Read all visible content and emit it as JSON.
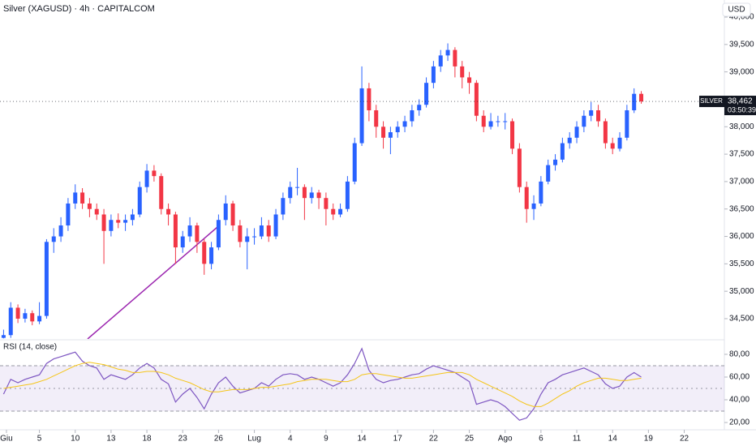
{
  "chart_data": [
    {
      "type": "candlestick",
      "title": "Silver (XAGUSD) · 4h · CAPITALCOM",
      "currency": "USD",
      "symbol_label": "SILVER",
      "last_price": {
        "value": 38462,
        "label": "38,462"
      },
      "countdown": "03:50:39",
      "up_color": "#2962ff",
      "down_color": "#f23645",
      "xlim": [
        -0.5,
        100.6
      ],
      "xticks": [
        {
          "value": 0.4,
          "label": "Giu"
        },
        {
          "value": 5,
          "label": "5"
        },
        {
          "value": 10,
          "label": "10"
        },
        {
          "value": 15,
          "label": "13"
        },
        {
          "value": 20,
          "label": "18"
        },
        {
          "value": 25,
          "label": "23"
        },
        {
          "value": 30,
          "label": "26"
        },
        {
          "value": 35,
          "label": "Lug"
        },
        {
          "value": 40,
          "label": "4"
        },
        {
          "value": 45,
          "label": "9"
        },
        {
          "value": 50,
          "label": "14"
        },
        {
          "value": 55,
          "label": "17"
        },
        {
          "value": 60,
          "label": "22"
        },
        {
          "value": 65,
          "label": "25"
        },
        {
          "value": 70,
          "label": "Ago"
        },
        {
          "value": 75,
          "label": "6"
        },
        {
          "value": 80,
          "label": "11"
        },
        {
          "value": 85,
          "label": "14"
        },
        {
          "value": 90,
          "label": "19"
        },
        {
          "value": 95,
          "label": "22"
        }
      ],
      "ylim": [
        34130,
        40311
      ],
      "yticks": [
        {
          "value": 34500,
          "label": "34,500"
        },
        {
          "value": 35000,
          "label": "35,000"
        },
        {
          "value": 35500,
          "label": "35,500"
        },
        {
          "value": 36000,
          "label": "36,000"
        },
        {
          "value": 36500,
          "label": "36,500"
        },
        {
          "value": 37000,
          "label": "37,000"
        },
        {
          "value": 37500,
          "label": "37,500"
        },
        {
          "value": 38000,
          "label": "38,000"
        },
        {
          "value": 38500,
          "label": "38,500"
        },
        {
          "value": 39000,
          "label": "39,000"
        },
        {
          "value": 39500,
          "label": "39,500"
        },
        {
          "value": 40000,
          "label": "40,000"
        }
      ],
      "ohlc": [
        [
          34150,
          34300,
          34140,
          34200
        ],
        [
          34200,
          34800,
          34150,
          34700
        ],
        [
          34700,
          34760,
          34420,
          34500
        ],
        [
          34500,
          34680,
          34430,
          34600
        ],
        [
          34600,
          34650,
          34380,
          34450
        ],
        [
          34450,
          34800,
          34400,
          34550
        ],
        [
          34550,
          35950,
          34500,
          35900
        ],
        [
          35900,
          36150,
          35700,
          36000
        ],
        [
          36000,
          36350,
          35900,
          36200
        ],
        [
          36200,
          36700,
          36100,
          36600
        ],
        [
          36600,
          36950,
          36500,
          36800
        ],
        [
          36800,
          36880,
          36500,
          36600
        ],
        [
          36600,
          36700,
          36350,
          36500
        ],
        [
          36500,
          36600,
          36300,
          36400
        ],
        [
          36400,
          36500,
          35500,
          36100
        ],
        [
          36100,
          36400,
          36000,
          36300
        ],
        [
          36300,
          36420,
          36150,
          36250
        ],
        [
          36250,
          36400,
          36100,
          36300
        ],
        [
          36300,
          36500,
          36200,
          36400
        ],
        [
          36400,
          37000,
          36350,
          36900
        ],
        [
          36900,
          37320,
          36800,
          37200
        ],
        [
          37200,
          37300,
          37000,
          37100
        ],
        [
          37100,
          37150,
          36400,
          36500
        ],
        [
          36500,
          36600,
          36200,
          36400
        ],
        [
          36400,
          36450,
          35500,
          35800
        ],
        [
          35800,
          36100,
          35700,
          36000
        ],
        [
          36000,
          36350,
          35900,
          36200
        ],
        [
          36200,
          36250,
          35700,
          35900
        ],
        [
          35900,
          35950,
          35300,
          35500
        ],
        [
          35500,
          35900,
          35400,
          35800
        ],
        [
          35800,
          36400,
          35750,
          36300
        ],
        [
          36300,
          36750,
          36200,
          36600
        ],
        [
          36600,
          36650,
          36100,
          36200
        ],
        [
          36200,
          36300,
          35800,
          35900
        ],
        [
          35900,
          36150,
          35400,
          36000
        ],
        [
          36000,
          36150,
          35850,
          36000
        ],
        [
          36000,
          36350,
          35950,
          36200
        ],
        [
          36200,
          36300,
          35900,
          36000
        ],
        [
          36000,
          36500,
          35950,
          36400
        ],
        [
          36400,
          36800,
          36300,
          36700
        ],
        [
          36700,
          37000,
          36600,
          36900
        ],
        [
          36900,
          37250,
          36750,
          36900
        ],
        [
          36900,
          36950,
          36300,
          36700
        ],
        [
          36700,
          36900,
          36600,
          36800
        ],
        [
          36800,
          36850,
          36500,
          36700
        ],
        [
          36700,
          36800,
          36200,
          36500
        ],
        [
          36500,
          36600,
          36300,
          36400
        ],
        [
          36400,
          36600,
          36350,
          36500
        ],
        [
          36500,
          37100,
          36450,
          37000
        ],
        [
          37000,
          37800,
          36950,
          37700
        ],
        [
          37700,
          39100,
          37650,
          38700
        ],
        [
          38700,
          38800,
          38100,
          38300
        ],
        [
          38300,
          38400,
          37800,
          38000
        ],
        [
          38000,
          38100,
          37600,
          37800
        ],
        [
          37800,
          38000,
          37500,
          37900
        ],
        [
          37900,
          38100,
          37800,
          38000
        ],
        [
          38000,
          38200,
          37900,
          38100
        ],
        [
          38100,
          38400,
          38000,
          38300
        ],
        [
          38300,
          38500,
          38200,
          38400
        ],
        [
          38400,
          38900,
          38350,
          38800
        ],
        [
          38800,
          39200,
          38700,
          39100
        ],
        [
          39100,
          39400,
          39000,
          39300
        ],
        [
          39300,
          39520,
          39200,
          39400
        ],
        [
          39400,
          39450,
          38900,
          39100
        ],
        [
          39100,
          39200,
          38700,
          38900
        ],
        [
          38900,
          39000,
          38600,
          38800
        ],
        [
          38800,
          38850,
          38100,
          38200
        ],
        [
          38200,
          38300,
          37900,
          38000
        ],
        [
          38000,
          38250,
          37950,
          38100
        ],
        [
          38100,
          38200,
          38000,
          38100
        ],
        [
          38100,
          38250,
          37950,
          38100
        ],
        [
          38100,
          38150,
          37500,
          37600
        ],
        [
          37600,
          37700,
          36800,
          36900
        ],
        [
          36900,
          37000,
          36250,
          36500
        ],
        [
          36500,
          36750,
          36300,
          36600
        ],
        [
          36600,
          37100,
          36550,
          37000
        ],
        [
          37000,
          37400,
          36950,
          37300
        ],
        [
          37300,
          37500,
          37200,
          37400
        ],
        [
          37400,
          37800,
          37350,
          37700
        ],
        [
          37700,
          37900,
          37600,
          37800
        ],
        [
          37800,
          38100,
          37700,
          38000
        ],
        [
          38000,
          38300,
          37900,
          38200
        ],
        [
          38200,
          38450,
          38100,
          38300
        ],
        [
          38300,
          38400,
          38000,
          38100
        ],
        [
          38100,
          38150,
          37600,
          37700
        ],
        [
          37700,
          37800,
          37500,
          37600
        ],
        [
          37600,
          37900,
          37550,
          37800
        ],
        [
          37800,
          38400,
          37750,
          38300
        ],
        [
          38300,
          38700,
          38250,
          38600
        ],
        [
          38600,
          38650,
          38420,
          38462
        ]
      ]
    },
    {
      "type": "line",
      "title": "RSI (14, close)",
      "xlim": [
        -0.5,
        100.6
      ],
      "ylim": [
        13.6,
        92.1
      ],
      "yticks": [
        {
          "value": 20,
          "label": "20,00"
        },
        {
          "value": 40,
          "label": "40,00"
        },
        {
          "value": 60,
          "label": "60,00"
        },
        {
          "value": 80,
          "label": "80,00"
        }
      ],
      "upper_band": 70,
      "middle_band": 50,
      "lower_band": 30,
      "band_color": "#7e57c2",
      "series": [
        {
          "name": "RSI",
          "color": "#7e57c2",
          "values": [
            45,
            58,
            55,
            58,
            60,
            62,
            72,
            76,
            78,
            80,
            82,
            74,
            70,
            68,
            58,
            62,
            60,
            58,
            62,
            68,
            72,
            68,
            58,
            54,
            38,
            45,
            50,
            42,
            32,
            45,
            55,
            60,
            52,
            46,
            48,
            50,
            55,
            52,
            58,
            62,
            63,
            62,
            58,
            60,
            58,
            55,
            52,
            55,
            62,
            72,
            85,
            66,
            58,
            55,
            57,
            58,
            60,
            62,
            63,
            67,
            70,
            68,
            66,
            64,
            60,
            56,
            36,
            38,
            40,
            38,
            34,
            28,
            22,
            24,
            32,
            45,
            55,
            58,
            62,
            64,
            66,
            68,
            65,
            62,
            54,
            50,
            52,
            60,
            64,
            60
          ]
        },
        {
          "name": "RSI-based MA",
          "color": "#f5c518",
          "values": [
            50,
            51,
            52,
            53,
            54,
            56,
            58,
            61,
            64,
            67,
            70,
            72,
            73,
            72,
            71,
            69,
            67,
            66,
            64,
            64,
            65,
            65,
            64,
            62,
            59,
            57,
            55,
            52,
            49,
            47,
            47,
            48,
            49,
            49,
            49,
            50,
            51,
            51,
            52,
            53,
            54,
            56,
            57,
            58,
            58,
            58,
            57,
            56,
            56,
            58,
            62,
            63,
            63,
            62,
            61,
            60,
            59,
            59,
            60,
            61,
            62,
            63,
            64,
            64,
            64,
            62,
            58,
            55,
            52,
            49,
            46,
            43,
            39,
            36,
            34,
            34,
            37,
            41,
            45,
            48,
            52,
            55,
            57,
            59,
            59,
            58,
            57,
            57,
            58,
            59
          ]
        }
      ]
    }
  ]
}
